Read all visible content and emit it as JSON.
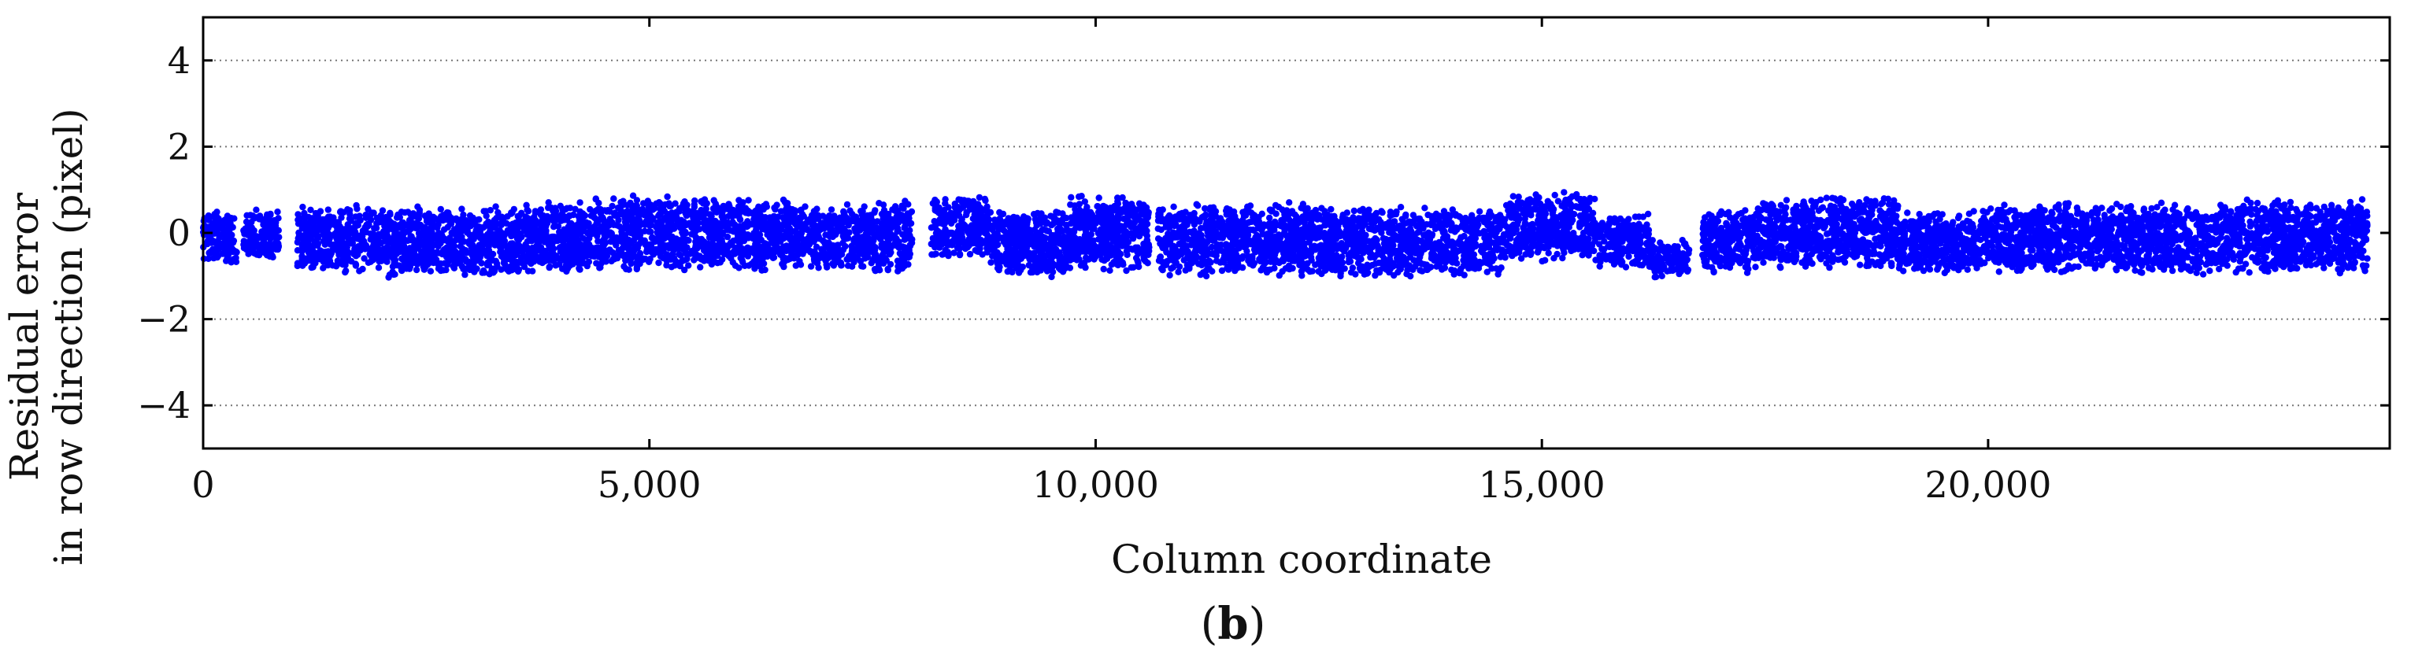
{
  "chart_data": {
    "type": "scatter",
    "xlabel": "Column coordinate",
    "ylabel_line1": "Residual error",
    "ylabel_line2": "in row direction (pixel)",
    "panel_label": {
      "open": "(",
      "letter": "b",
      "close": ")"
    },
    "xlim": [
      0,
      24500
    ],
    "ylim": [
      -5,
      5
    ],
    "x_ticks": [
      0,
      5000,
      10000,
      15000,
      20000
    ],
    "x_tick_labels": [
      "0",
      "5,000",
      "10,000",
      "15,000",
      "20,000"
    ],
    "y_ticks": [
      4,
      2,
      0,
      -2,
      -4
    ],
    "y_tick_labels": [
      "4",
      "2",
      "0",
      "−2",
      "−4"
    ],
    "grid": {
      "horizontal_dotted": true,
      "vertical": false
    },
    "marker_color": "#0000ff",
    "clusters": [
      {
        "x_start": 0,
        "x_end": 380,
        "y_center": -0.1,
        "spread": 0.65,
        "points": 140
      },
      {
        "x_start": 450,
        "x_end": 850,
        "y_center": -0.05,
        "spread": 0.6,
        "points": 150
      },
      {
        "x_start": 1050,
        "x_end": 2000,
        "y_center": -0.15,
        "spread": 0.8,
        "points": 420
      },
      {
        "x_start": 2000,
        "x_end": 3600,
        "y_center": -0.2,
        "spread": 0.85,
        "points": 700
      },
      {
        "x_start": 3600,
        "x_end": 4400,
        "y_center": -0.1,
        "spread": 0.85,
        "points": 380
      },
      {
        "x_start": 4400,
        "x_end": 5900,
        "y_center": 0.0,
        "spread": 0.9,
        "points": 650
      },
      {
        "x_start": 5900,
        "x_end": 6600,
        "y_center": -0.05,
        "spread": 0.85,
        "points": 320
      },
      {
        "x_start": 6600,
        "x_end": 7600,
        "y_center": -0.1,
        "spread": 0.8,
        "points": 420
      },
      {
        "x_start": 7600,
        "x_end": 7950,
        "y_center": -0.1,
        "spread": 0.85,
        "points": 160
      },
      {
        "x_start": 8150,
        "x_end": 8800,
        "y_center": 0.15,
        "spread": 0.8,
        "points": 260
      },
      {
        "x_start": 8800,
        "x_end": 9700,
        "y_center": -0.25,
        "spread": 0.8,
        "points": 420
      },
      {
        "x_start": 9700,
        "x_end": 10600,
        "y_center": 0.0,
        "spread": 0.95,
        "points": 420
      },
      {
        "x_start": 10700,
        "x_end": 12500,
        "y_center": -0.15,
        "spread": 0.9,
        "points": 800
      },
      {
        "x_start": 12500,
        "x_end": 13100,
        "y_center": -0.2,
        "spread": 0.85,
        "points": 280
      },
      {
        "x_start": 13100,
        "x_end": 14600,
        "y_center": -0.2,
        "spread": 0.85,
        "points": 600
      },
      {
        "x_start": 14600,
        "x_end": 15600,
        "y_center": 0.15,
        "spread": 0.85,
        "points": 430
      },
      {
        "x_start": 15600,
        "x_end": 16200,
        "y_center": -0.2,
        "spread": 0.65,
        "points": 220
      },
      {
        "x_start": 16200,
        "x_end": 16650,
        "y_center": -0.6,
        "spread": 0.45,
        "points": 120
      },
      {
        "x_start": 16800,
        "x_end": 17400,
        "y_center": -0.2,
        "spread": 0.75,
        "points": 250
      },
      {
        "x_start": 17400,
        "x_end": 19000,
        "y_center": 0.0,
        "spread": 0.85,
        "points": 700
      },
      {
        "x_start": 19000,
        "x_end": 20000,
        "y_center": -0.25,
        "spread": 0.8,
        "points": 430
      },
      {
        "x_start": 20000,
        "x_end": 21300,
        "y_center": -0.1,
        "spread": 0.85,
        "points": 560
      },
      {
        "x_start": 21300,
        "x_end": 22600,
        "y_center": -0.15,
        "spread": 0.85,
        "points": 560
      },
      {
        "x_start": 22600,
        "x_end": 24250,
        "y_center": -0.1,
        "spread": 0.9,
        "points": 760
      }
    ]
  }
}
